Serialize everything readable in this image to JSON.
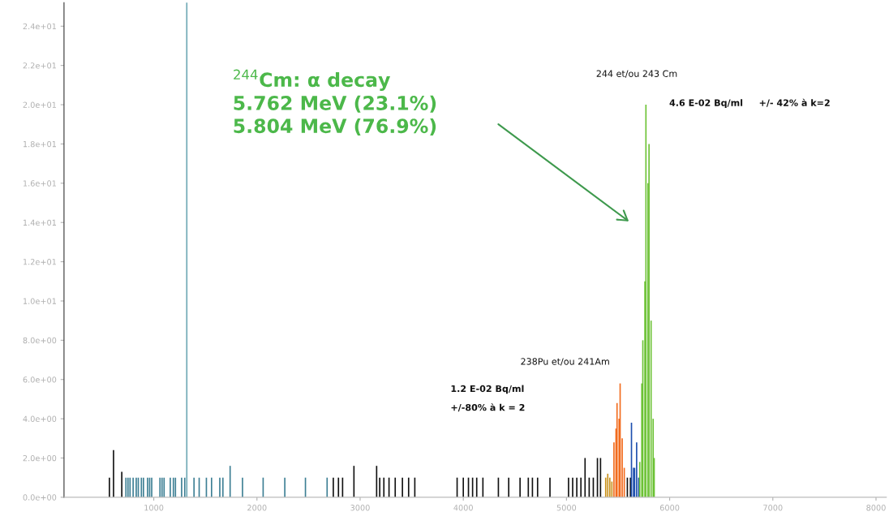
{
  "chart_data": {
    "type": "bar",
    "xlim": [
      130,
      8100
    ],
    "xticks": [
      1000,
      2000,
      3000,
      4000,
      5000,
      6000,
      7000,
      8000
    ],
    "ylim": [
      0,
      25.2
    ],
    "yticks": [
      {
        "value": 0,
        "label": "0.0e+00"
      },
      {
        "value": 2,
        "label": "2.0e+00"
      },
      {
        "value": 4,
        "label": "4.0e+00"
      },
      {
        "value": 6,
        "label": "6.0e+00"
      },
      {
        "value": 8,
        "label": "8.0e+00"
      },
      {
        "value": 10,
        "label": "1.0e+01"
      },
      {
        "value": 12,
        "label": "1.2e+01"
      },
      {
        "value": 14,
        "label": "1.4e+01"
      },
      {
        "value": 16,
        "label": "1.6e+01"
      },
      {
        "value": 18,
        "label": "1.8e+01"
      },
      {
        "value": 20,
        "label": "2.0e+01"
      },
      {
        "value": 22,
        "label": "2.2e+01"
      },
      {
        "value": 24,
        "label": "2.4e+01"
      }
    ],
    "grid": false,
    "legend": false,
    "series": [
      {
        "color": "#3d7f94",
        "x": [
          730,
          750,
          770,
          800,
          830,
          850,
          880,
          900,
          940,
          960,
          980,
          1060,
          1080,
          1100,
          1160,
          1190,
          1210,
          1270,
          1300,
          1390,
          1440,
          1510,
          1560,
          1640,
          1670,
          1740,
          1860,
          2060,
          2270,
          2470,
          2680
        ],
        "values": [
          1,
          1,
          1,
          1,
          1,
          1,
          1,
          1,
          1,
          1,
          1,
          1,
          1,
          1,
          1,
          1,
          1,
          1,
          1,
          1,
          1,
          1,
          1,
          1,
          1,
          1.6,
          1,
          1,
          1,
          1,
          1
        ]
      },
      {
        "color": "#111111",
        "x": [
          570,
          610,
          690,
          2740,
          2790,
          2830,
          2940,
          3160,
          3190,
          3230,
          3280,
          3340,
          3410,
          3470,
          3530,
          3940,
          4000,
          4050,
          4090,
          4130,
          4190,
          4340,
          4440,
          4550,
          4630,
          4670,
          4720,
          4840,
          5020,
          5060,
          5100,
          5140,
          5180,
          5220,
          5260,
          5300,
          5330,
          5590,
          5620
        ],
        "values": [
          1,
          2.4,
          1.3,
          1,
          1,
          1,
          1.6,
          1.6,
          1,
          1,
          1,
          1,
          1,
          1,
          1,
          1,
          1,
          1,
          1,
          1,
          1,
          1,
          1,
          1,
          1,
          1,
          1,
          1,
          1,
          1,
          1,
          1,
          2,
          1,
          1,
          2,
          2,
          1,
          1
        ]
      },
      {
        "color": "#c8901a",
        "x": [
          5380,
          5400,
          5420,
          5440
        ],
        "values": [
          1,
          1.2,
          1,
          0.8
        ]
      },
      {
        "color": "#f26b1d",
        "x": [
          5460,
          5480,
          5490,
          5510,
          5520,
          5540,
          5560
        ],
        "values": [
          2.8,
          3.5,
          4.8,
          4,
          5.8,
          3,
          1.5
        ]
      },
      {
        "color": "#1d4fae",
        "x": [
          5630,
          5650,
          5660,
          5680,
          5700
        ],
        "values": [
          3.8,
          1.5,
          1.5,
          2.8,
          1
        ]
      },
      {
        "color": "#6cc235",
        "x": [
          5710,
          5730,
          5740,
          5760,
          5770,
          5790,
          5800,
          5820,
          5840,
          5850
        ],
        "values": [
          1.8,
          5.8,
          8,
          11,
          20,
          16,
          18,
          9,
          4,
          2
        ]
      }
    ],
    "ref_lines": [
      {
        "axis": "x",
        "value": 1320,
        "color": "#6fa9b5"
      }
    ],
    "annotations": [
      "$^{244}$Cm: α decay\n5.762 MeV (23.1%)\n5.804 MeV (76.9%)",
      "244 et/ou 243 Cm",
      "4.6 E-02 Bq/ml",
      "+/- 42% à k=2",
      "238Pu et/ou 241Am",
      "1.2 E-02 Bq/ml",
      "+/-80% à k = 2"
    ]
  }
}
